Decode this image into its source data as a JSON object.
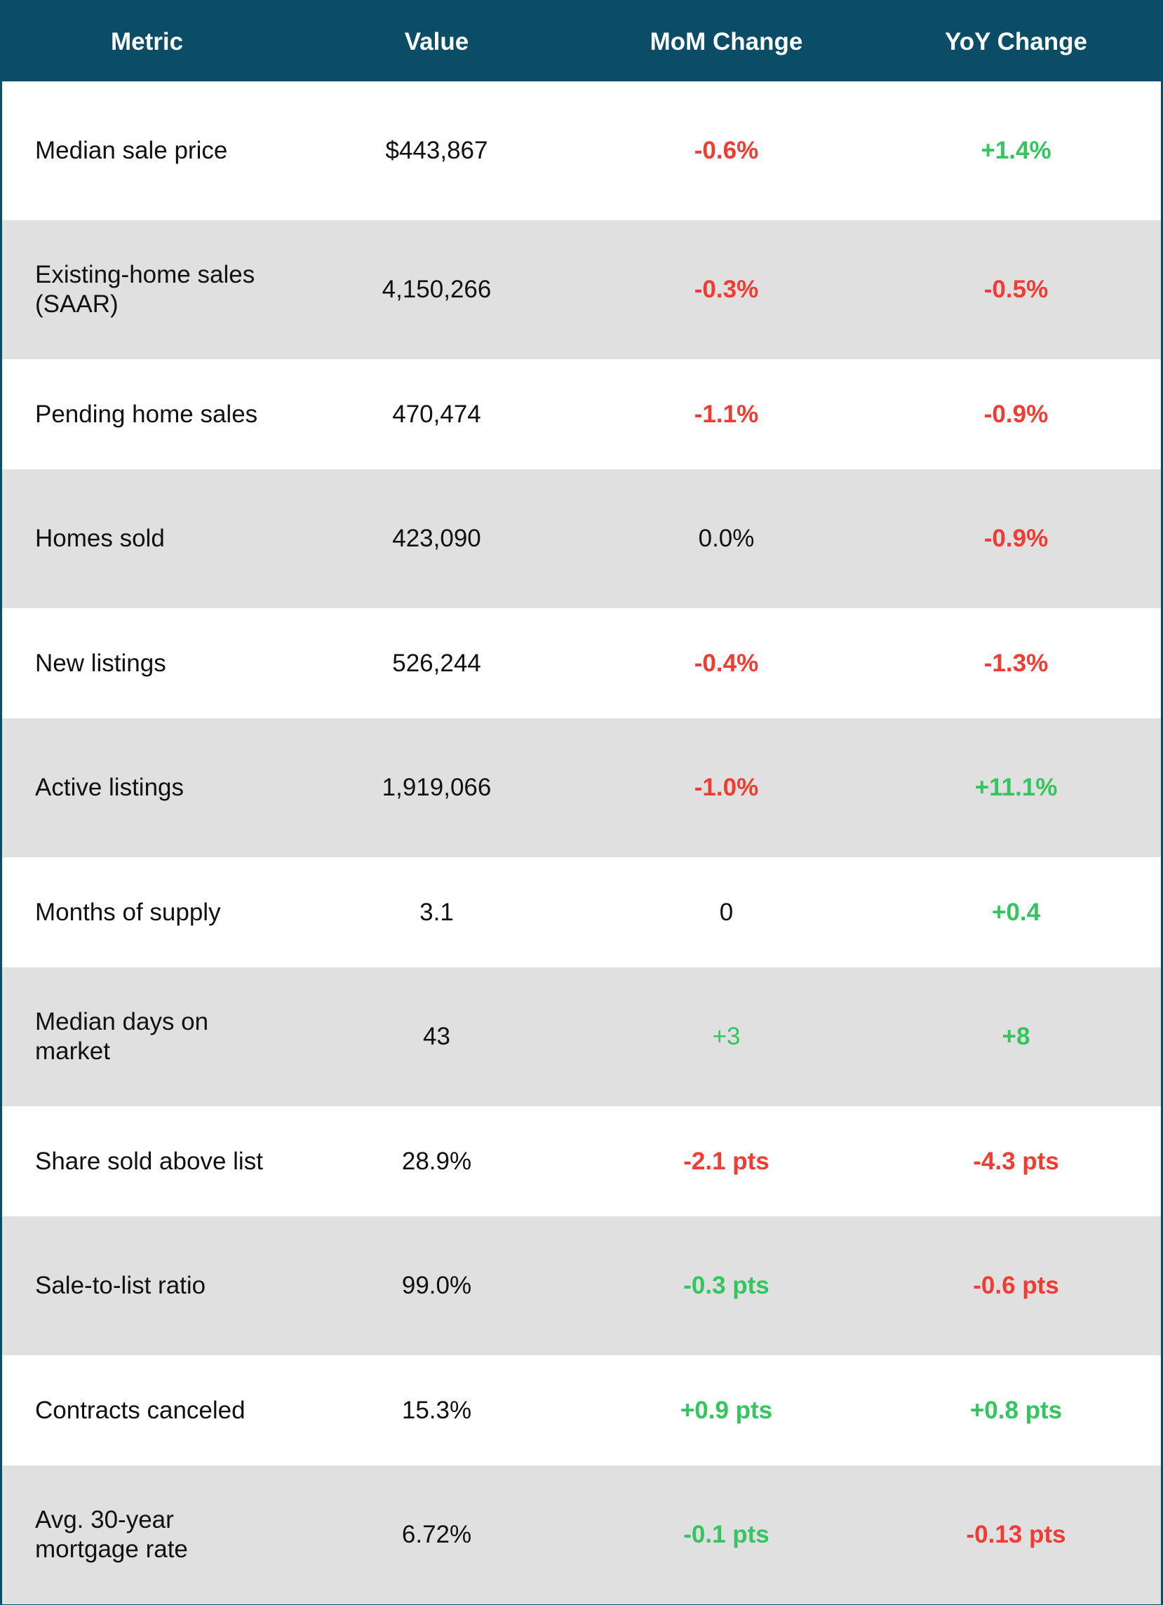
{
  "colors": {
    "header_bg": "#0b4d66",
    "header_text": "#ffffff",
    "row_alt_bg": "#e0e0e0",
    "negative": "#f03c32",
    "positive": "#33c55e",
    "neutral": "#111111"
  },
  "chart_data": {
    "type": "table",
    "columns": [
      "Metric",
      "Value",
      "MoM Change",
      "YoY Change"
    ],
    "rows": [
      {
        "metric": "Median sale price",
        "value": "$443,867",
        "mom": "-0.6%",
        "mom_style": "neg",
        "yoy": "+1.4%",
        "yoy_style": "pos"
      },
      {
        "metric": "Existing-home sales (SAAR)",
        "value": "4,150,266",
        "mom": "-0.3%",
        "mom_style": "neg",
        "yoy": "-0.5%",
        "yoy_style": "neg"
      },
      {
        "metric": "Pending home sales",
        "value": "470,474",
        "mom": "-1.1%",
        "mom_style": "neg",
        "yoy": "-0.9%",
        "yoy_style": "neg"
      },
      {
        "metric": "Homes sold",
        "value": "423,090",
        "mom": "0.0%",
        "mom_style": "neutral",
        "yoy": "-0.9%",
        "yoy_style": "neg"
      },
      {
        "metric": "New listings",
        "value": "526,244",
        "mom": "-0.4%",
        "mom_style": "neg",
        "yoy": "-1.3%",
        "yoy_style": "neg"
      },
      {
        "metric": "Active listings",
        "value": "1,919,066",
        "mom": "-1.0%",
        "mom_style": "neg",
        "yoy": "+11.1%",
        "yoy_style": "pos"
      },
      {
        "metric": "Months of supply",
        "value": "3.1",
        "mom": "0",
        "mom_style": "neutral",
        "yoy": "+0.4",
        "yoy_style": "pos"
      },
      {
        "metric": "Median days on market",
        "value": "43",
        "mom": "+3",
        "mom_style": "pos-plain",
        "yoy": "+8",
        "yoy_style": "pos"
      },
      {
        "metric": "Share sold above list",
        "value": "28.9%",
        "mom": "-2.1 pts",
        "mom_style": "neg",
        "yoy": "-4.3 pts",
        "yoy_style": "neg"
      },
      {
        "metric": "Sale-to-list ratio",
        "value": "99.0%",
        "mom": "-0.3 pts",
        "mom_style": "pos",
        "yoy": "-0.6 pts",
        "yoy_style": "neg"
      },
      {
        "metric": "Contracts canceled",
        "value": "15.3%",
        "mom": "+0.9 pts",
        "mom_style": "pos",
        "yoy": "+0.8 pts",
        "yoy_style": "pos"
      },
      {
        "metric": "Avg. 30-year mortgage rate",
        "value": "6.72%",
        "mom": "-0.1 pts",
        "mom_style": "pos",
        "yoy": "-0.13 pts",
        "yoy_style": "neg"
      }
    ]
  }
}
